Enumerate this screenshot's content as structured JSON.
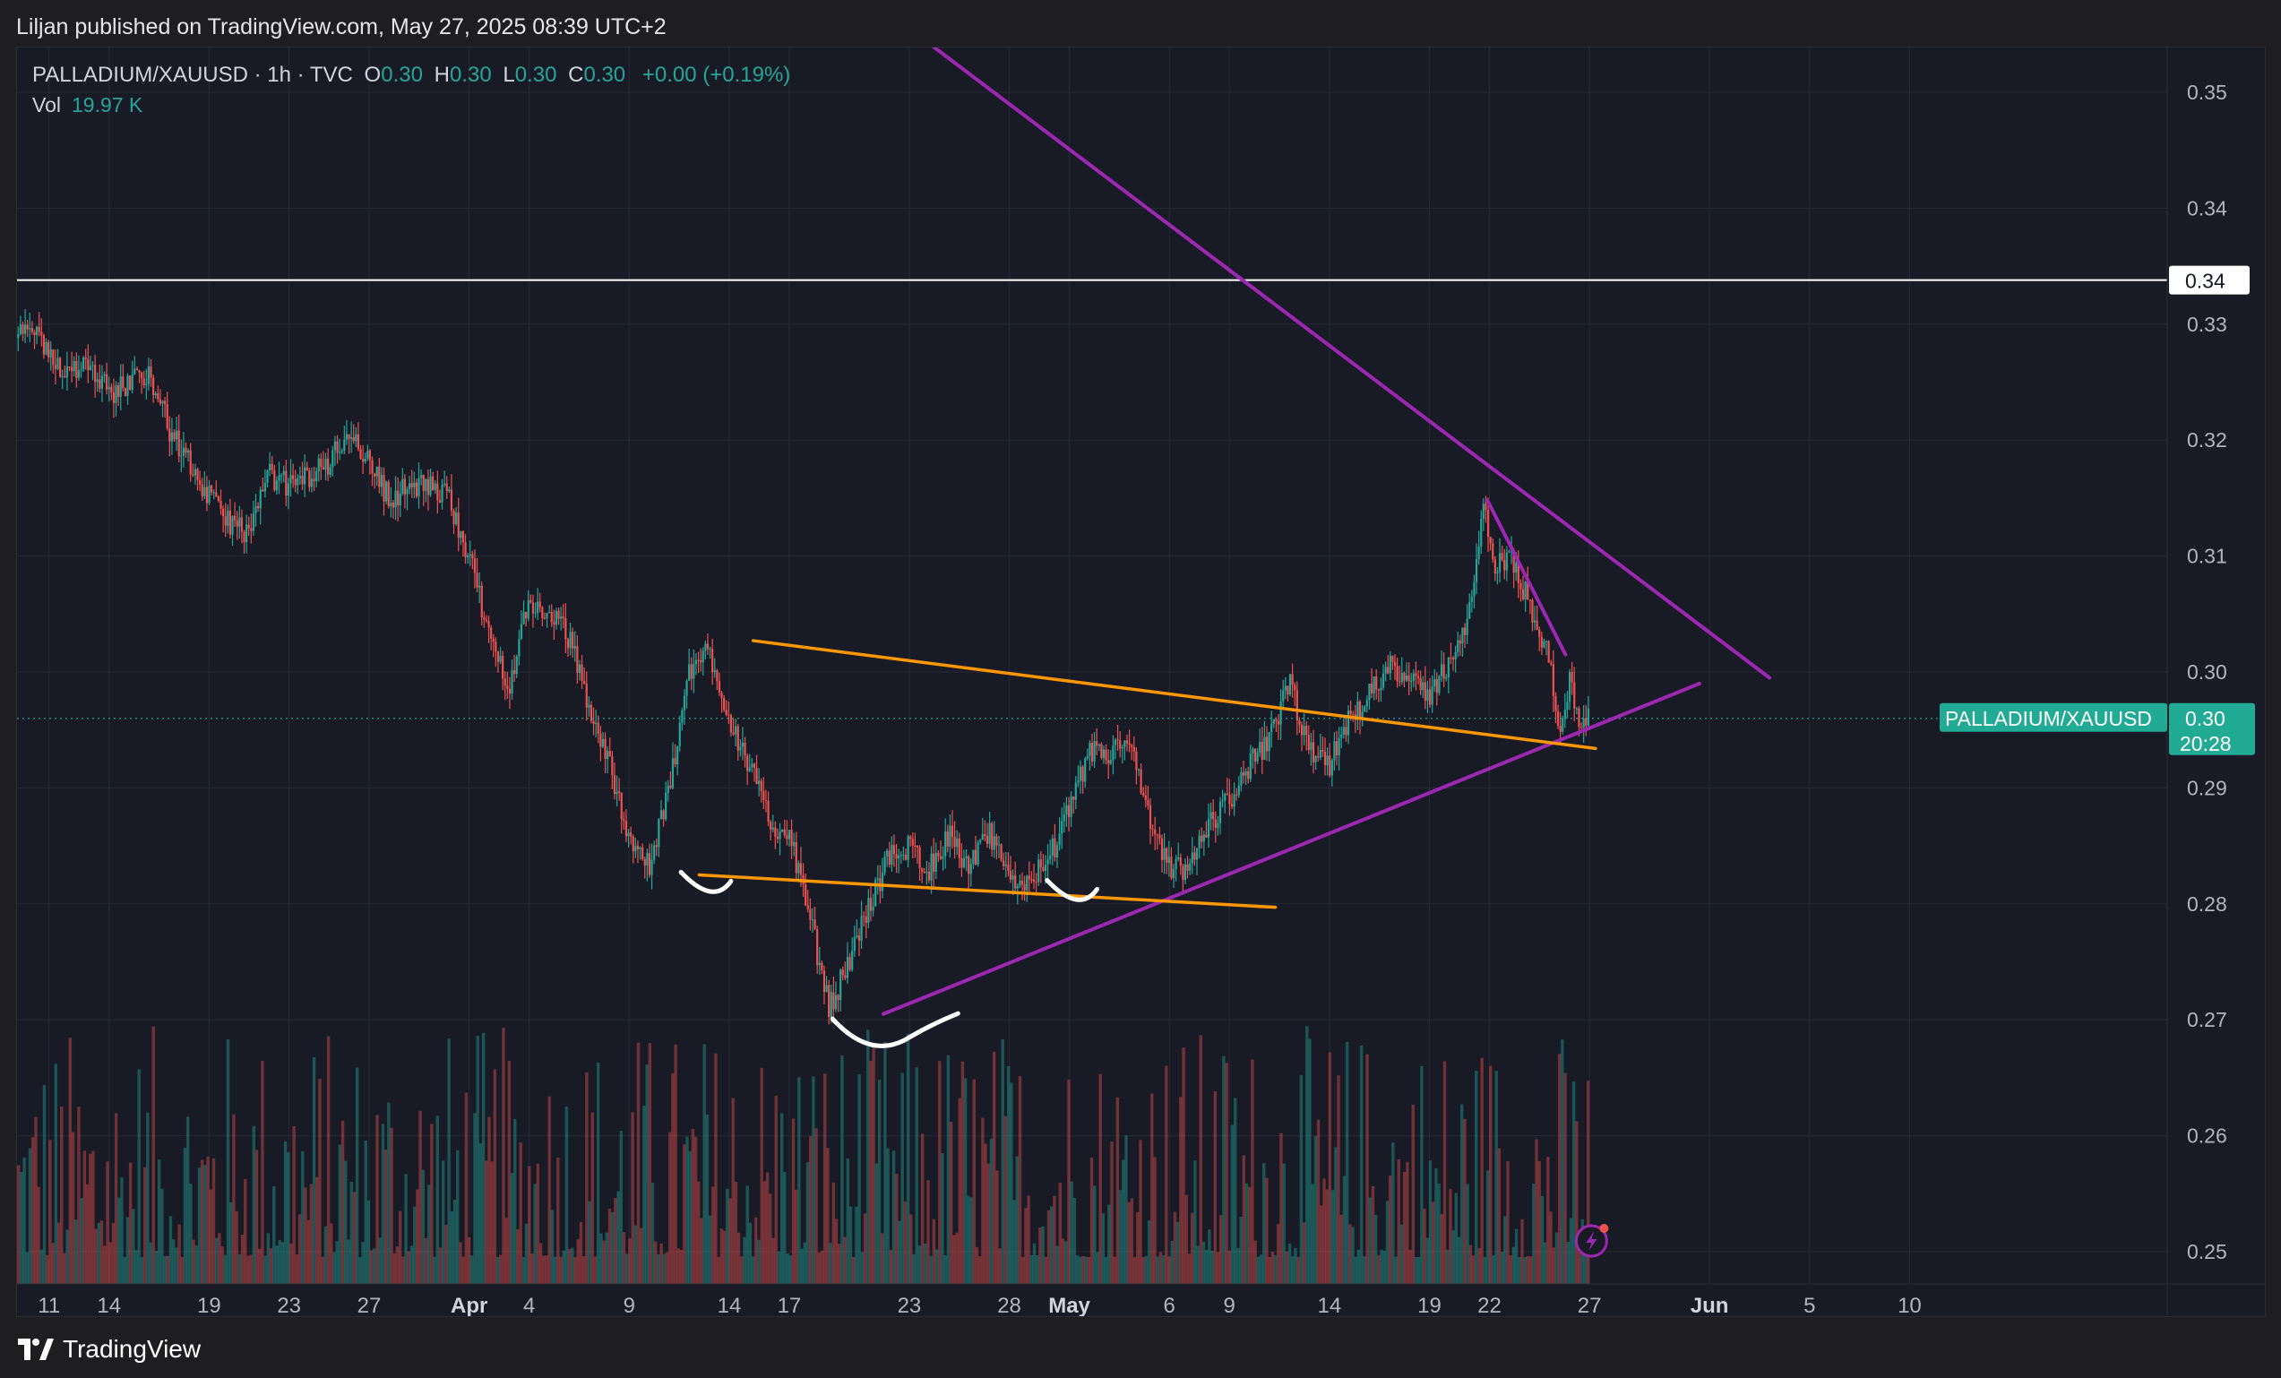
{
  "header": {
    "published": "Liljan published on TradingView.com, May 27, 2025 08:39 UTC+2"
  },
  "legend": {
    "symbol": "PALLADIUM/XAUUSD · 1h · TVC",
    "open_label": "O",
    "open": "0.30",
    "high_label": "H",
    "high": "0.30",
    "low_label": "L",
    "low": "0.30",
    "close_label": "C",
    "close": "0.30",
    "change": "+0.00 (+0.19%)",
    "vol_label": "Vol",
    "vol_value": "19.97 K"
  },
  "footer": {
    "brand": "TradingView"
  },
  "colors": {
    "background": "#181b25",
    "up": "#26a69a",
    "down": "#ef5350",
    "trendline_purple": "#9c27b0",
    "trendline_orange": "#ff9800",
    "horizontal_level": "#ffffff",
    "price_tag": "#22ab94",
    "annotation_white": "#ffffff"
  },
  "chart_data": {
    "type": "candlestick",
    "symbol": "PALLADIUM/XAUUSD",
    "interval": "1h",
    "ylim": [
      0.25,
      0.355
    ],
    "y_ticks": [
      "0.35",
      "0.34",
      "0.33",
      "0.32",
      "0.31",
      "0.30",
      "0.29",
      "0.28",
      "0.27",
      "0.26",
      "0.25"
    ],
    "x_ticks": [
      {
        "label": "11",
        "day": 11
      },
      {
        "label": "14",
        "day": 14
      },
      {
        "label": "19",
        "day": 19
      },
      {
        "label": "23",
        "day": 23
      },
      {
        "label": "27",
        "day": 27
      },
      {
        "label": "Apr",
        "day": 32,
        "bold": true
      },
      {
        "label": "4",
        "day": 35
      },
      {
        "label": "9",
        "day": 40
      },
      {
        "label": "14",
        "day": 45
      },
      {
        "label": "17",
        "day": 48
      },
      {
        "label": "23",
        "day": 54
      },
      {
        "label": "28",
        "day": 59
      },
      {
        "label": "May",
        "day": 62,
        "bold": true
      },
      {
        "label": "6",
        "day": 67
      },
      {
        "label": "9",
        "day": 70
      },
      {
        "label": "14",
        "day": 75
      },
      {
        "label": "19",
        "day": 80
      },
      {
        "label": "22",
        "day": 83
      },
      {
        "label": "27",
        "day": 88
      },
      {
        "label": "Jun",
        "day": 94,
        "bold": true
      },
      {
        "label": "5",
        "day": 99
      },
      {
        "label": "10",
        "day": 104
      }
    ],
    "price_path": [
      [
        9,
        0.328
      ],
      [
        10,
        0.33
      ],
      [
        11,
        0.327
      ],
      [
        12,
        0.326
      ],
      [
        13,
        0.327
      ],
      [
        14,
        0.324
      ],
      [
        15,
        0.325
      ],
      [
        16,
        0.326
      ],
      [
        17,
        0.321
      ],
      [
        18,
        0.318
      ],
      [
        19,
        0.315
      ],
      [
        20,
        0.313
      ],
      [
        21,
        0.312
      ],
      [
        22,
        0.317
      ],
      [
        23,
        0.316
      ],
      [
        24,
        0.317
      ],
      [
        25,
        0.318
      ],
      [
        26,
        0.321
      ],
      [
        27,
        0.318
      ],
      [
        28,
        0.315
      ],
      [
        29,
        0.316
      ],
      [
        30,
        0.316
      ],
      [
        31,
        0.315
      ],
      [
        32,
        0.31
      ],
      [
        33,
        0.303
      ],
      [
        34,
        0.299
      ],
      [
        35,
        0.306
      ],
      [
        36,
        0.305
      ],
      [
        37,
        0.303
      ],
      [
        38,
        0.297
      ],
      [
        39,
        0.292
      ],
      [
        40,
        0.286
      ],
      [
        41,
        0.283
      ],
      [
        42,
        0.29
      ],
      [
        43,
        0.3
      ],
      [
        44,
        0.302
      ],
      [
        45,
        0.296
      ],
      [
        46,
        0.292
      ],
      [
        47,
        0.287
      ],
      [
        48,
        0.286
      ],
      [
        49,
        0.279
      ],
      [
        50,
        0.271
      ],
      [
        51,
        0.275
      ],
      [
        52,
        0.28
      ],
      [
        53,
        0.284
      ],
      [
        54,
        0.285
      ],
      [
        55,
        0.283
      ],
      [
        56,
        0.286
      ],
      [
        57,
        0.283
      ],
      [
        58,
        0.286
      ],
      [
        59,
        0.282
      ],
      [
        60,
        0.282
      ],
      [
        61,
        0.284
      ],
      [
        62,
        0.288
      ],
      [
        63,
        0.293
      ],
      [
        64,
        0.293
      ],
      [
        65,
        0.294
      ],
      [
        66,
        0.287
      ],
      [
        67,
        0.283
      ],
      [
        68,
        0.283
      ],
      [
        69,
        0.287
      ],
      [
        70,
        0.289
      ],
      [
        71,
        0.292
      ],
      [
        72,
        0.294
      ],
      [
        73,
        0.299
      ],
      [
        74,
        0.293
      ],
      [
        75,
        0.292
      ],
      [
        76,
        0.296
      ],
      [
        77,
        0.298
      ],
      [
        78,
        0.301
      ],
      [
        79,
        0.299
      ],
      [
        80,
        0.298
      ],
      [
        81,
        0.301
      ],
      [
        82,
        0.305
      ],
      [
        82.7,
        0.314
      ],
      [
        83.3,
        0.309
      ],
      [
        84,
        0.31
      ],
      [
        85,
        0.306
      ],
      [
        86,
        0.301
      ],
      [
        86.5,
        0.295
      ],
      [
        87,
        0.299
      ],
      [
        87.5,
        0.296
      ],
      [
        88,
        0.296
      ]
    ],
    "last_price": "0.30",
    "countdown": "20:28",
    "price_tag_label": "PALLADIUM/XAUUSD",
    "horizontal_level": {
      "price": 0.3338,
      "label": "0.34"
    },
    "trendlines": [
      {
        "color": "purple",
        "from": [
          54,
          0.3555
        ],
        "to": [
          97,
          0.2995
        ]
      },
      {
        "color": "purple",
        "from": [
          52.7,
          0.2705
        ],
        "to": [
          93.5,
          0.299
        ]
      },
      {
        "color": "purple",
        "from": [
          82.9,
          0.3148
        ],
        "to": [
          86.8,
          0.3015
        ]
      },
      {
        "color": "orange",
        "from": [
          46.2,
          0.3027
        ],
        "to": [
          88.3,
          0.2934
        ]
      },
      {
        "color": "orange",
        "from": [
          43.5,
          0.2825
        ],
        "to": [
          72.3,
          0.2797
        ]
      }
    ],
    "annotations": [
      {
        "type": "smile",
        "at": [
          44.2,
          0.2815
        ]
      },
      {
        "type": "smile",
        "at": [
          53.3,
          0.269
        ]
      },
      {
        "type": "smile",
        "at": [
          62.5,
          0.2808
        ]
      }
    ]
  }
}
